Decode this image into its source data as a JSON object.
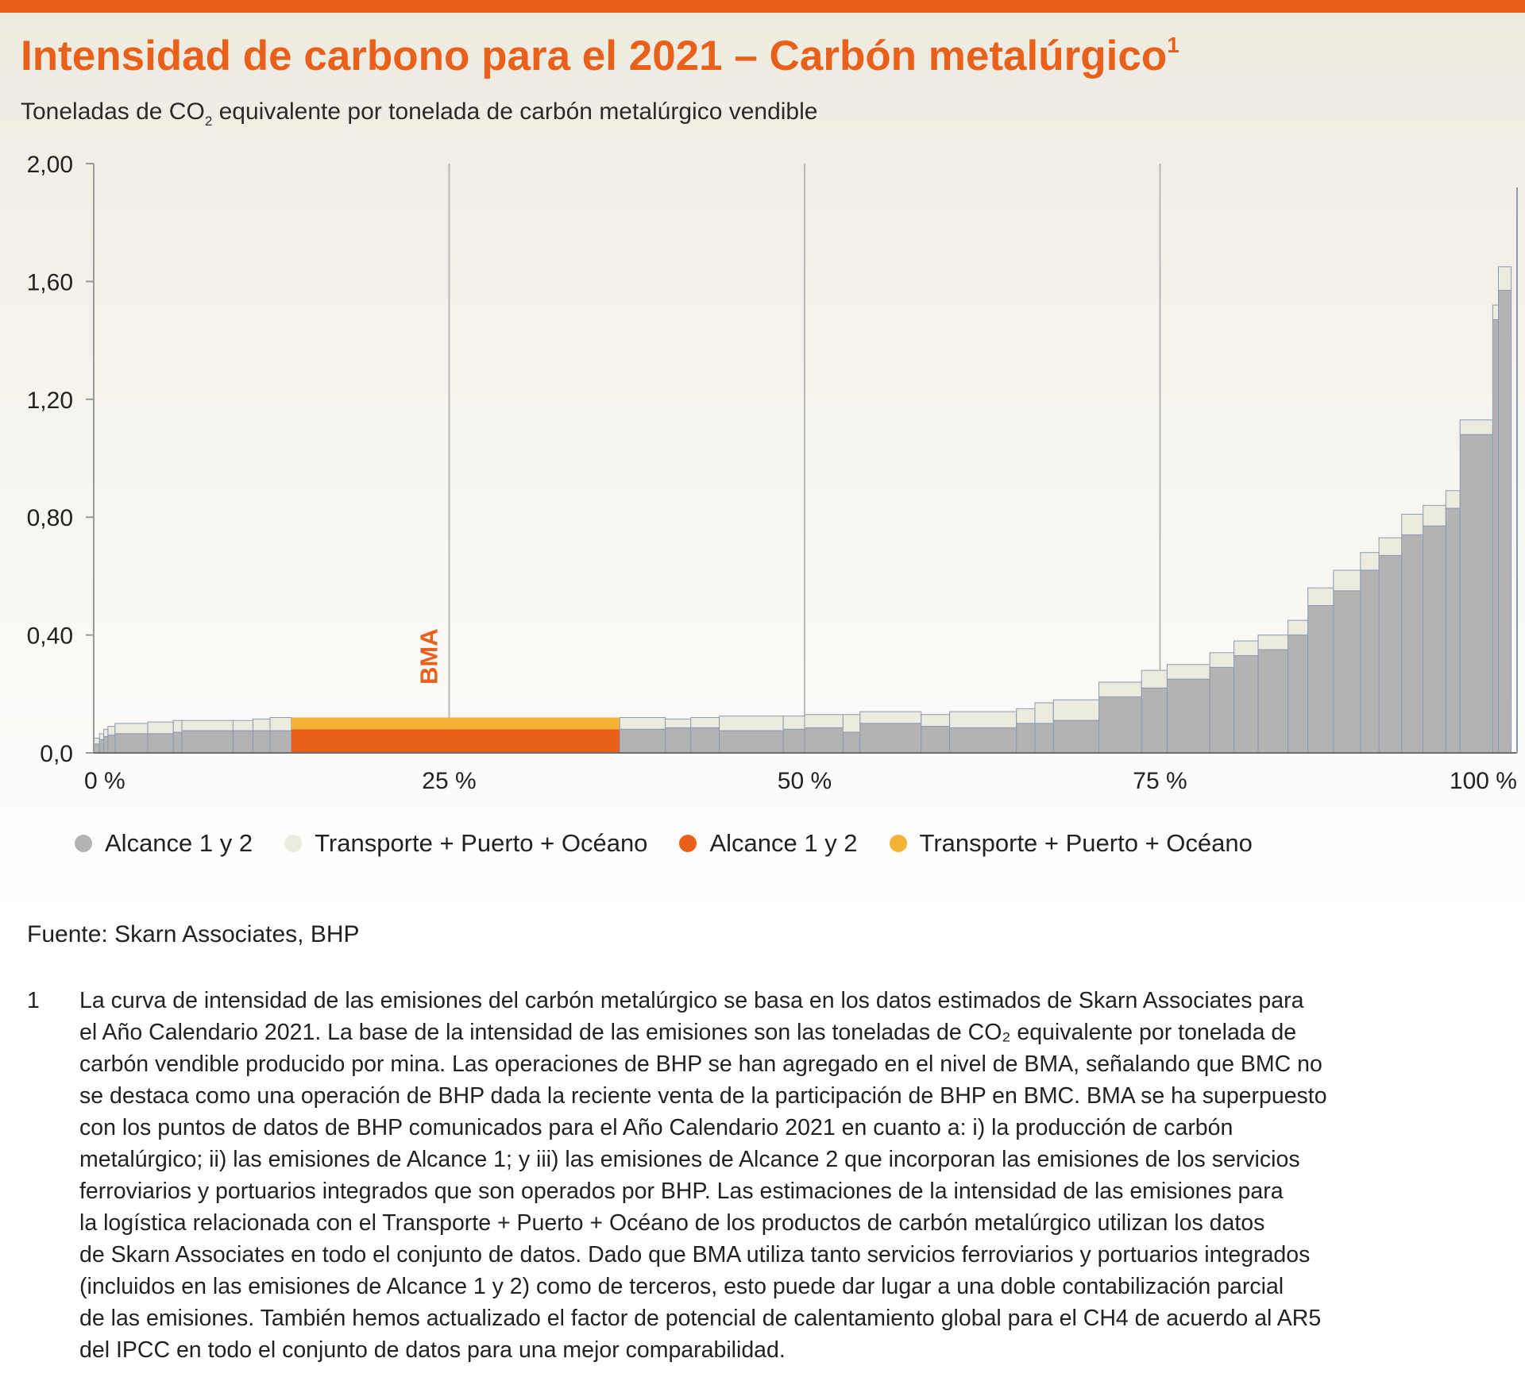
{
  "header": {
    "title": "Intensidad de carbono para el 2021 – Carbón metalúrgico",
    "title_sup": "1",
    "subtitle_pre": "Toneladas de CO",
    "subtitle_sub": "2",
    "subtitle_post": " equivalente por tonelada de carbón metalúrgico vendible"
  },
  "colors": {
    "accent": "#e8601a",
    "industry_scope12": "#b3b3b3",
    "industry_transport": "#ecebdf",
    "bma_scope12": "#e8601a",
    "bma_transport": "#f5b335",
    "bar_outline": "#8d9ab3",
    "gridline": "#b8b8b8"
  },
  "chart_data": {
    "type": "bar",
    "subtype": "stacked cumulative-supply (marimekko) curve",
    "x_axis": {
      "label": "",
      "unit": "% of cumulative saleable metallurgical coal production",
      "range": [
        0,
        100
      ],
      "ticks": [
        "0 %",
        "25 %",
        "50 %",
        "75 %",
        "100 %"
      ]
    },
    "y_axis": {
      "label": "Toneladas de CO2 equivalente por tonelada de carbón metalúrgico vendible",
      "range": [
        0,
        2.0
      ],
      "ticks": [
        "0,0",
        "0,40",
        "0,80",
        "1,20",
        "1,60",
        "2,00"
      ]
    },
    "vertical_gridlines_at": [
      25,
      50,
      75
    ],
    "legend": [
      {
        "label": "Alcance 1 y 2",
        "color": "#b3b3b3"
      },
      {
        "label": "Transporte + Puerto + Océano",
        "color": "#ecebdf"
      },
      {
        "label": "Alcance 1 y 2",
        "color": "#e8601a"
      },
      {
        "label": "Transporte + Puerto + Océano",
        "color": "#f5b335"
      }
    ],
    "series": [
      {
        "name": "Alcance 1 y 2",
        "stack_position": "bottom"
      },
      {
        "name": "Transporte + Puerto + Océano",
        "stack_position": "top"
      }
    ],
    "annotations": [
      {
        "text": "BMA",
        "x": 23.5,
        "orientation": "vertical"
      }
    ],
    "bars": [
      {
        "x_start": 0.0,
        "width": 0.4,
        "scope12": 0.03,
        "transport": 0.02
      },
      {
        "x_start": 0.4,
        "width": 0.3,
        "scope12": 0.045,
        "transport": 0.02
      },
      {
        "x_start": 0.7,
        "width": 0.3,
        "scope12": 0.055,
        "transport": 0.025
      },
      {
        "x_start": 1.0,
        "width": 0.5,
        "scope12": 0.06,
        "transport": 0.03
      },
      {
        "x_start": 1.5,
        "width": 2.3,
        "scope12": 0.065,
        "transport": 0.035
      },
      {
        "x_start": 3.8,
        "width": 1.8,
        "scope12": 0.065,
        "transport": 0.04
      },
      {
        "x_start": 5.6,
        "width": 0.6,
        "scope12": 0.07,
        "transport": 0.04
      },
      {
        "x_start": 6.2,
        "width": 3.6,
        "scope12": 0.075,
        "transport": 0.035
      },
      {
        "x_start": 9.8,
        "width": 1.4,
        "scope12": 0.075,
        "transport": 0.035
      },
      {
        "x_start": 11.2,
        "width": 1.2,
        "scope12": 0.075,
        "transport": 0.04
      },
      {
        "x_start": 12.4,
        "width": 1.5,
        "scope12": 0.075,
        "transport": 0.045
      },
      {
        "x_start": 13.9,
        "width": 23.1,
        "scope12": 0.08,
        "transport": 0.04,
        "highlight": true,
        "name": "BMA"
      },
      {
        "x_start": 37.0,
        "width": 3.2,
        "scope12": 0.08,
        "transport": 0.04
      },
      {
        "x_start": 40.2,
        "width": 1.8,
        "scope12": 0.085,
        "transport": 0.03
      },
      {
        "x_start": 42.0,
        "width": 2.0,
        "scope12": 0.085,
        "transport": 0.035
      },
      {
        "x_start": 44.0,
        "width": 4.5,
        "scope12": 0.075,
        "transport": 0.05
      },
      {
        "x_start": 48.5,
        "width": 1.5,
        "scope12": 0.08,
        "transport": 0.045
      },
      {
        "x_start": 50.0,
        "width": 2.7,
        "scope12": 0.085,
        "transport": 0.045
      },
      {
        "x_start": 52.7,
        "width": 1.2,
        "scope12": 0.07,
        "transport": 0.06
      },
      {
        "x_start": 53.9,
        "width": 4.3,
        "scope12": 0.1,
        "transport": 0.04
      },
      {
        "x_start": 58.2,
        "width": 2.0,
        "scope12": 0.09,
        "transport": 0.04
      },
      {
        "x_start": 60.2,
        "width": 4.7,
        "scope12": 0.085,
        "transport": 0.055
      },
      {
        "x_start": 64.9,
        "width": 1.3,
        "scope12": 0.1,
        "transport": 0.05
      },
      {
        "x_start": 66.2,
        "width": 1.3,
        "scope12": 0.1,
        "transport": 0.07
      },
      {
        "x_start": 67.5,
        "width": 3.2,
        "scope12": 0.11,
        "transport": 0.07
      },
      {
        "x_start": 70.7,
        "width": 3.0,
        "scope12": 0.19,
        "transport": 0.05
      },
      {
        "x_start": 73.7,
        "width": 1.8,
        "scope12": 0.22,
        "transport": 0.06
      },
      {
        "x_start": 75.5,
        "width": 3.0,
        "scope12": 0.25,
        "transport": 0.05
      },
      {
        "x_start": 78.5,
        "width": 1.7,
        "scope12": 0.29,
        "transport": 0.05
      },
      {
        "x_start": 80.2,
        "width": 1.7,
        "scope12": 0.33,
        "transport": 0.05
      },
      {
        "x_start": 81.9,
        "width": 2.1,
        "scope12": 0.35,
        "transport": 0.05
      },
      {
        "x_start": 84.0,
        "width": 1.4,
        "scope12": 0.4,
        "transport": 0.05
      },
      {
        "x_start": 85.4,
        "width": 1.8,
        "scope12": 0.5,
        "transport": 0.06
      },
      {
        "x_start": 87.2,
        "width": 1.9,
        "scope12": 0.55,
        "transport": 0.07
      },
      {
        "x_start": 89.1,
        "width": 1.3,
        "scope12": 0.62,
        "transport": 0.06
      },
      {
        "x_start": 90.4,
        "width": 1.6,
        "scope12": 0.67,
        "transport": 0.06
      },
      {
        "x_start": 92.0,
        "width": 1.5,
        "scope12": 0.74,
        "transport": 0.07
      },
      {
        "x_start": 93.5,
        "width": 1.6,
        "scope12": 0.77,
        "transport": 0.07
      },
      {
        "x_start": 95.1,
        "width": 1.0,
        "scope12": 0.83,
        "transport": 0.06
      },
      {
        "x_start": 96.1,
        "width": 2.3,
        "scope12": 1.08,
        "transport": 0.05
      },
      {
        "x_start": 98.4,
        "width": 0.4,
        "scope12": 1.47,
        "transport": 0.05
      },
      {
        "x_start": 98.8,
        "width": 0.9,
        "scope12": 1.57,
        "transport": 0.08
      }
    ]
  },
  "legend_items": [
    {
      "label": "Alcance 1 y 2"
    },
    {
      "label": "Transporte + Puerto + Océano"
    },
    {
      "label": "Alcance 1 y 2"
    },
    {
      "label": "Transporte + Puerto + Océano"
    }
  ],
  "source": "Fuente: Skarn Associates, BHP",
  "footnote": {
    "number": "1",
    "lines": [
      "La curva de intensidad de las emisiones del carbón metalúrgico se basa en los datos estimados de Skarn Associates para",
      "el Año Calendario 2021. La base de la intensidad de las emisiones son las toneladas de CO₂ equivalente por tonelada de",
      "carbón vendible producido por mina. Las operaciones de BHP se han agregado en el nivel de BMA, señalando que BMC no",
      "se destaca como una operación de BHP dada la reciente venta de la participación de BHP en BMC. BMA se ha superpuesto",
      "con los puntos de datos de BHP comunicados para el Año Calendario 2021 en cuanto a: i) la producción de carbón",
      "metalúrgico; ii) las emisiones de Alcance 1; y iii) las emisiones de Alcance 2 que incorporan las emisiones de los servicios",
      "ferroviarios y portuarios integrados que son operados por BHP. Las estimaciones de la intensidad de las emisiones para",
      "la logística relacionada con el Transporte + Puerto + Océano de los productos de carbón metalúrgico utilizan los datos",
      "de Skarn Associates en todo el conjunto de datos. Dado que BMA utiliza tanto servicios ferroviarios y portuarios integrados",
      "(incluidos en las emisiones de Alcance 1 y 2) como de terceros, esto puede dar lugar a una doble contabilización parcial",
      "de las emisiones. También hemos actualizado el factor de potencial de calentamiento global para el CH4 de acuerdo al AR5",
      "del IPCC en todo el conjunto de datos para una mejor comparabilidad."
    ]
  }
}
